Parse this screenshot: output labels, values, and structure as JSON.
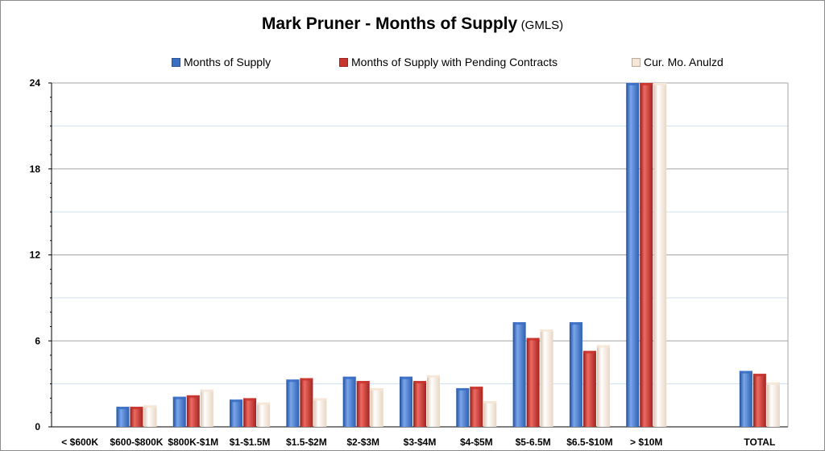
{
  "chart_data": {
    "type": "bar",
    "title": "Mark Pruner - Months of Supply",
    "subtitle": "(GMLS)",
    "xlabel": "",
    "ylabel": "",
    "ylim": [
      0,
      24
    ],
    "yticks": [
      0,
      6,
      12,
      18,
      24
    ],
    "grid": true,
    "legend_position": "top",
    "categories": [
      "< $600K",
      "$600-$800K",
      "$800K-$1M",
      "$1-$1.5M",
      "$1.5-$2M",
      "$2-$3M",
      "$3-$4M",
      "$4-$5M",
      "$5-6.5M",
      "$6.5-$10M",
      "> $10M",
      "",
      "TOTAL"
    ],
    "series": [
      {
        "name": "Months of Supply",
        "color": "#3a6fc4",
        "values": [
          0,
          1.4,
          2.1,
          1.9,
          3.3,
          3.5,
          3.5,
          2.7,
          7.3,
          7.3,
          24,
          null,
          3.9
        ]
      },
      {
        "name": "Months of Supply with Pending Contracts",
        "color": "#c8342e",
        "values": [
          0,
          1.4,
          2.2,
          2.0,
          3.4,
          3.2,
          3.2,
          2.8,
          6.2,
          5.3,
          24,
          null,
          3.7
        ]
      },
      {
        "name": "Cur. Mo. Anulzd",
        "color": "#f6e6d6",
        "values": [
          0,
          1.5,
          2.6,
          1.7,
          2.0,
          2.7,
          3.6,
          1.8,
          6.8,
          5.7,
          24,
          null,
          3.1
        ]
      }
    ]
  }
}
